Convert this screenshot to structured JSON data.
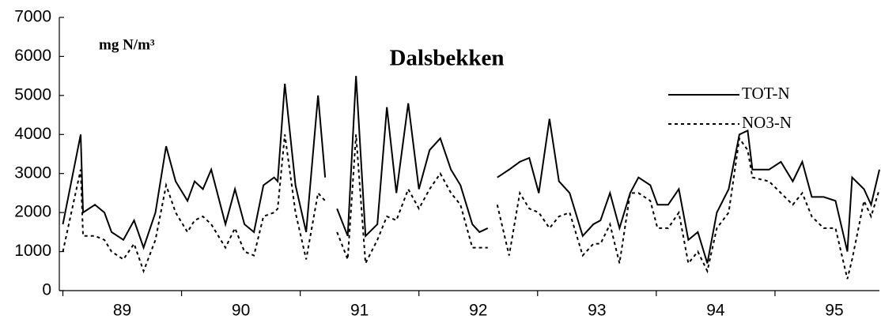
{
  "chart_data": {
    "type": "line",
    "title": "Dalsbekken",
    "y_label": "mg N/m³",
    "x": [
      89.0,
      89.15,
      89.17,
      89.27,
      89.35,
      89.41,
      89.51,
      89.6,
      89.68,
      89.78,
      89.87,
      89.95,
      90.05,
      90.11,
      90.18,
      90.25,
      90.37,
      90.45,
      90.53,
      90.61,
      90.69,
      90.78,
      90.81,
      90.87,
      90.96,
      91.05,
      91.15,
      91.21,
      91.27,
      91.31,
      91.4,
      91.47,
      91.55,
      91.65,
      91.73,
      91.81,
      91.91,
      92.0,
      92.09,
      92.18,
      92.27,
      92.35,
      92.45,
      92.51,
      92.58,
      92.62,
      92.66,
      92.76,
      92.85,
      92.93,
      93.01,
      93.1,
      93.18,
      93.27,
      93.38,
      93.47,
      93.53,
      93.61,
      93.69,
      93.78,
      93.85,
      93.95,
      94.01,
      94.1,
      94.19,
      94.27,
      94.35,
      94.43,
      94.51,
      94.61,
      94.7,
      94.77,
      94.81,
      94.95,
      95.05,
      95.15,
      95.23,
      95.31,
      95.41,
      95.51,
      95.61,
      95.65,
      95.75,
      95.81,
      95.88
    ],
    "series": [
      {
        "name": "TOT-N",
        "color": "#000000",
        "style": "solid",
        "values": [
          1700,
          4000,
          2000,
          2200,
          2000,
          1500,
          1300,
          1800,
          1100,
          2000,
          3700,
          2800,
          2300,
          2800,
          2600,
          3100,
          1700,
          2600,
          1700,
          1500,
          2700,
          2900,
          2800,
          5300,
          2700,
          1500,
          5000,
          2900,
          null,
          2100,
          1400,
          5500,
          1400,
          1700,
          4700,
          2500,
          4800,
          2600,
          3600,
          3900,
          3100,
          2700,
          1700,
          1500,
          1600,
          null,
          2900,
          3100,
          3300,
          3400,
          2500,
          4400,
          2800,
          2500,
          1400,
          1700,
          1800,
          2500,
          1600,
          2500,
          2900,
          2700,
          2200,
          2200,
          2600,
          1300,
          1500,
          700,
          2000,
          2600,
          4000,
          4100,
          3100,
          3100,
          3300,
          2800,
          3300,
          2400,
          2400,
          2300,
          1000,
          2900,
          2600,
          2200,
          3100
        ]
      },
      {
        "name": "NO3-N",
        "color": "#000000",
        "style": "dashed",
        "values": [
          1000,
          3100,
          1400,
          1400,
          1300,
          1000,
          800,
          1200,
          500,
          1300,
          2700,
          2000,
          1500,
          1800,
          1900,
          1700,
          1100,
          1600,
          1000,
          900,
          1900,
          2000,
          2100,
          4000,
          2000,
          800,
          2500,
          2300,
          null,
          1500,
          800,
          4000,
          700,
          1300,
          1900,
          1800,
          2600,
          2100,
          2600,
          3000,
          2500,
          2200,
          1100,
          1100,
          1100,
          null,
          2200,
          900,
          2500,
          2100,
          2000,
          1600,
          1900,
          2000,
          900,
          1200,
          1200,
          1700,
          700,
          2500,
          2500,
          2300,
          1600,
          1600,
          2000,
          700,
          1000,
          500,
          1600,
          2000,
          3900,
          3600,
          2900,
          2800,
          2500,
          2200,
          2500,
          1900,
          1600,
          1600,
          300,
          800,
          2300,
          1900,
          2600
        ]
      }
    ],
    "xlim": [
      88.97,
      95.88
    ],
    "xticks": [
      {
        "value": 89.5,
        "label": "89"
      },
      {
        "value": 90.5,
        "label": "90"
      },
      {
        "value": 91.5,
        "label": "91"
      },
      {
        "value": 92.5,
        "label": "92"
      },
      {
        "value": 93.5,
        "label": "93"
      },
      {
        "value": 94.5,
        "label": "94"
      },
      {
        "value": 95.5,
        "label": "95"
      }
    ],
    "xminorticks": [
      89,
      90,
      91,
      92,
      93,
      94,
      95
    ],
    "ylim": [
      0,
      7000
    ],
    "yticks": [
      0,
      1000,
      2000,
      3000,
      4000,
      5000,
      6000,
      7000
    ],
    "grid": false,
    "legend": "upper right"
  }
}
